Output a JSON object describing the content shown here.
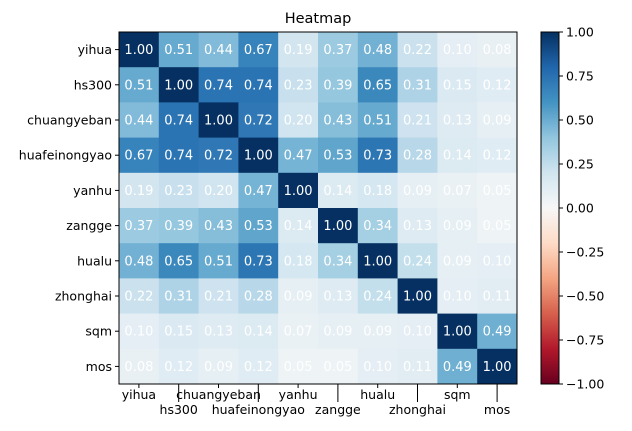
{
  "chart_data": {
    "type": "heatmap",
    "title": "Heatmap",
    "xlabel": "",
    "ylabel": "",
    "labels": [
      "yihua",
      "hs300",
      "chuangyeban",
      "huafeinongyao",
      "yanhu",
      "zangge",
      "hualu",
      "zhonghai",
      "sqm",
      "mos"
    ],
    "matrix": [
      [
        1.0,
        0.51,
        0.44,
        0.67,
        0.19,
        0.37,
        0.48,
        0.22,
        0.1,
        0.08
      ],
      [
        0.51,
        1.0,
        0.74,
        0.74,
        0.23,
        0.39,
        0.65,
        0.31,
        0.15,
        0.12
      ],
      [
        0.44,
        0.74,
        1.0,
        0.72,
        0.2,
        0.43,
        0.51,
        0.21,
        0.13,
        0.09
      ],
      [
        0.67,
        0.74,
        0.72,
        1.0,
        0.47,
        0.53,
        0.73,
        0.28,
        0.14,
        0.12
      ],
      [
        0.19,
        0.23,
        0.2,
        0.47,
        1.0,
        0.14,
        0.18,
        0.09,
        0.07,
        0.05
      ],
      [
        0.37,
        0.39,
        0.43,
        0.53,
        0.14,
        1.0,
        0.34,
        0.13,
        0.09,
        0.05
      ],
      [
        0.48,
        0.65,
        0.51,
        0.73,
        0.18,
        0.34,
        1.0,
        0.24,
        0.09,
        0.1
      ],
      [
        0.22,
        0.31,
        0.21,
        0.28,
        0.09,
        0.13,
        0.24,
        1.0,
        0.1,
        0.11
      ],
      [
        0.1,
        0.15,
        0.13,
        0.14,
        0.07,
        0.09,
        0.09,
        0.1,
        1.0,
        0.49
      ],
      [
        0.08,
        0.12,
        0.09,
        0.12,
        0.05,
        0.05,
        0.1,
        0.11,
        0.49,
        1.0
      ]
    ],
    "colormap": "RdBu",
    "colormap_stops": [
      "#67001f",
      "#b2182b",
      "#d6604d",
      "#f4a582",
      "#fddbc7",
      "#f7f7f7",
      "#d1e5f0",
      "#92c5de",
      "#4393c3",
      "#2166ac",
      "#053061"
    ],
    "vmin": -1,
    "vmax": 1,
    "colorbar_ticks": [
      "1.00",
      "0.75",
      "0.50",
      "0.25",
      "0.00",
      "−0.25",
      "−0.50",
      "−0.75",
      "−1.00"
    ],
    "colorbar_values": [
      1,
      0.75,
      0.5,
      0.25,
      0,
      -0.25,
      -0.5,
      -0.75,
      -1
    ],
    "annotation_color": "#ffffff"
  }
}
